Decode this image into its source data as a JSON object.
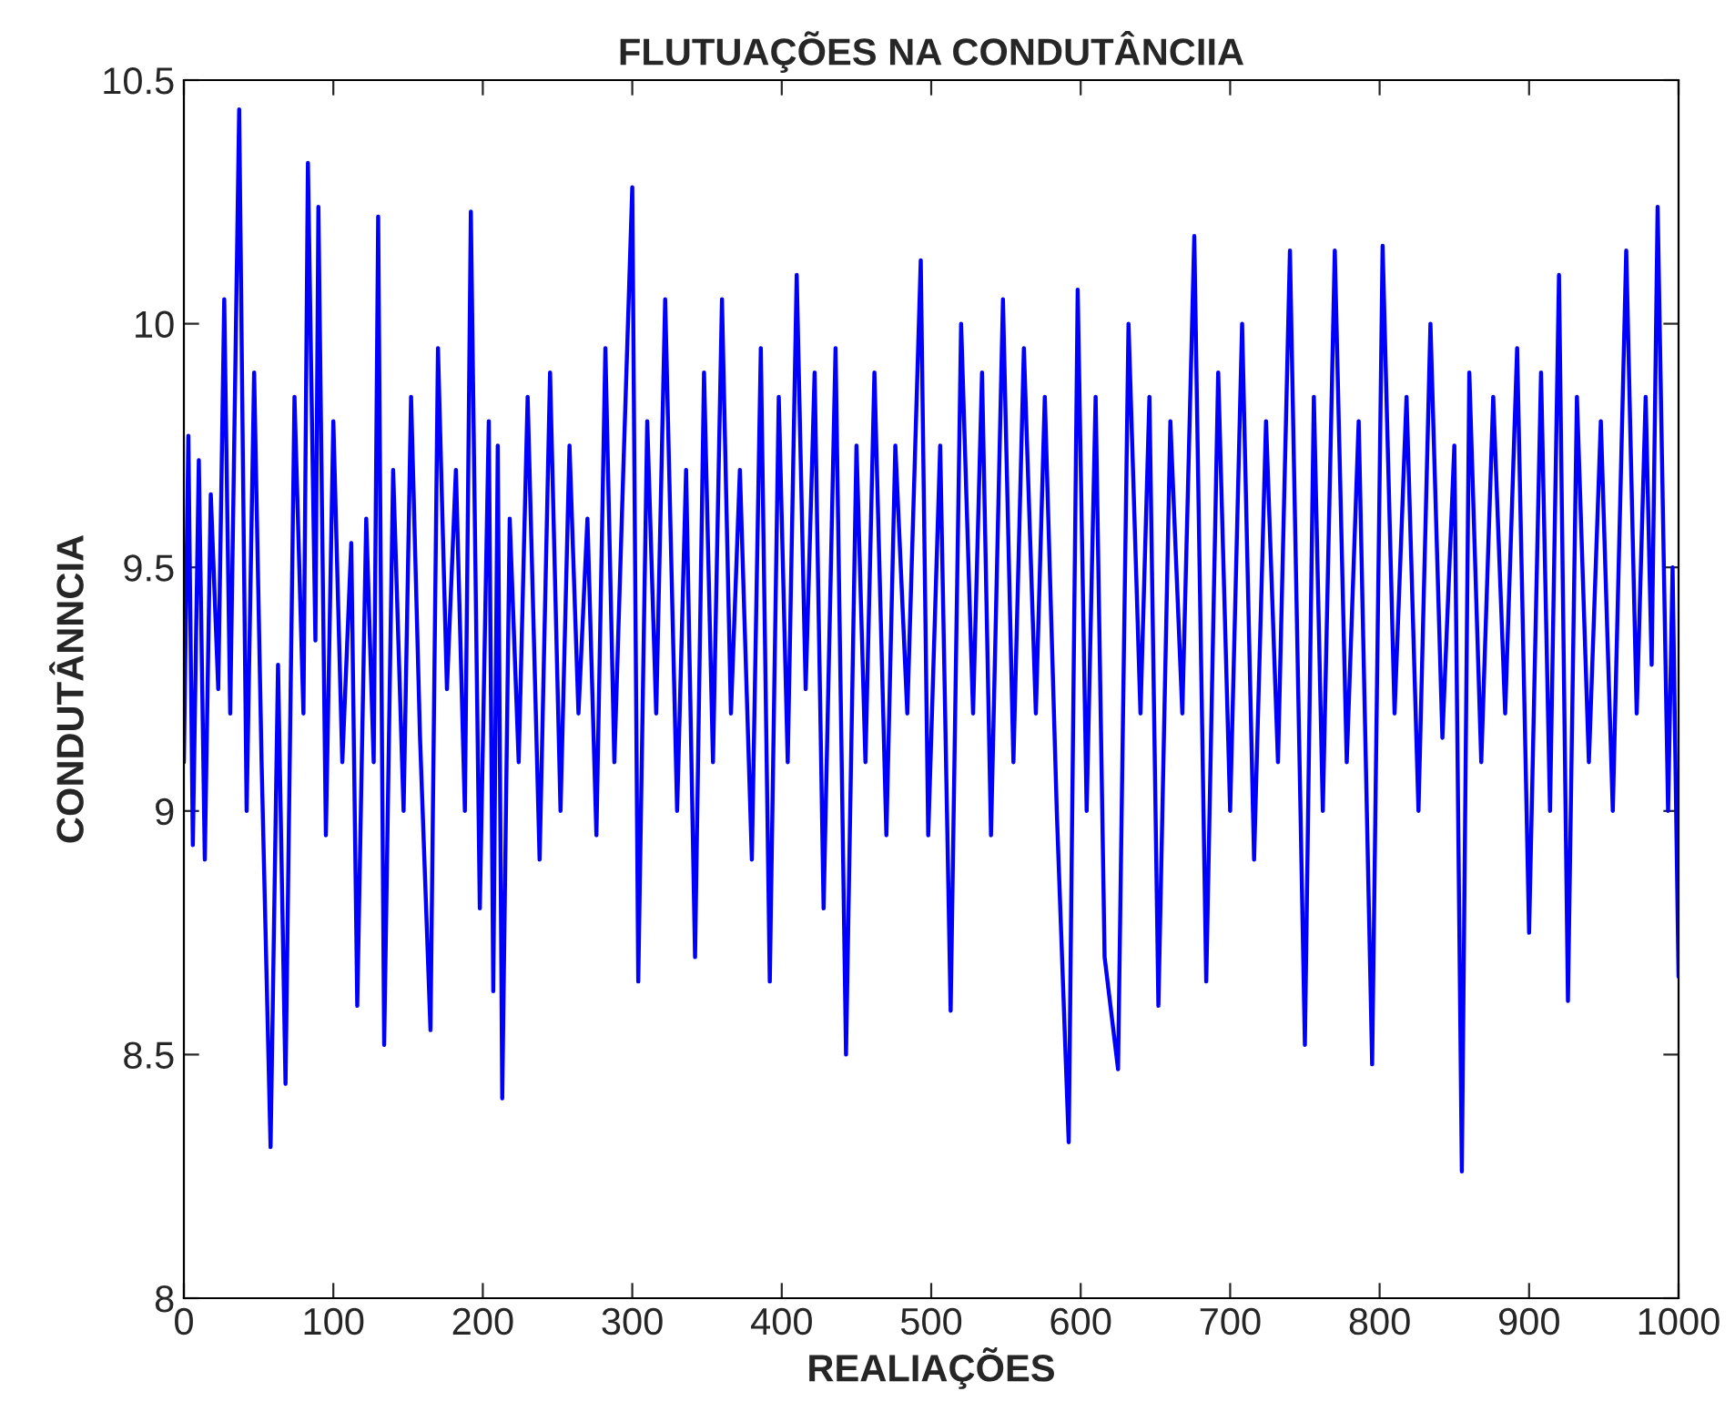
{
  "chart_data": {
    "type": "line",
    "title": "FLUTUAÇÕES NA CONDUTÂNCIIA",
    "xlabel": "REALIAÇÕES",
    "ylabel": "CONDUTÂNNCIA",
    "xlim": [
      0,
      1000
    ],
    "ylim": [
      8,
      10.5
    ],
    "xticks": [
      0,
      100,
      200,
      300,
      400,
      500,
      600,
      700,
      800,
      900,
      1000
    ],
    "yticks": [
      8,
      8.5,
      9,
      9.5,
      10,
      10.5
    ],
    "grid": false,
    "legend": false,
    "series": [
      {
        "color": "#0000ff",
        "x": [
          0,
          3,
          6,
          10,
          14,
          18,
          23,
          27,
          31,
          37,
          42,
          47,
          52,
          58,
          63,
          68,
          74,
          80,
          83,
          88,
          90,
          95,
          100,
          106,
          112,
          116,
          122,
          127,
          130,
          134,
          140,
          147,
          152,
          158,
          165,
          170,
          176,
          182,
          188,
          192,
          198,
          204,
          207,
          210,
          213,
          218,
          224,
          230,
          238,
          245,
          252,
          258,
          264,
          270,
          276,
          282,
          288,
          294,
          300,
          304,
          310,
          316,
          322,
          330,
          336,
          342,
          348,
          354,
          360,
          366,
          372,
          380,
          386,
          392,
          398,
          404,
          410,
          416,
          422,
          428,
          436,
          443,
          450,
          456,
          462,
          470,
          476,
          484,
          493,
          498,
          506,
          513,
          520,
          528,
          534,
          540,
          548,
          555,
          562,
          570,
          576,
          584,
          592,
          598,
          604,
          610,
          616,
          625,
          632,
          640,
          646,
          652,
          660,
          668,
          676,
          684,
          692,
          700,
          708,
          716,
          724,
          732,
          740,
          750,
          756,
          762,
          770,
          778,
          786,
          795,
          802,
          810,
          818,
          826,
          834,
          842,
          850,
          855,
          860,
          868,
          876,
          884,
          892,
          900,
          908,
          914,
          920,
          926,
          932,
          940,
          948,
          956,
          965,
          972,
          978,
          982,
          986,
          993,
          996,
          1000
        ],
        "values": [
          9.1,
          9.77,
          8.93,
          9.72,
          8.9,
          9.65,
          9.25,
          10.05,
          9.2,
          10.44,
          9.0,
          9.9,
          9.1,
          8.31,
          9.3,
          8.44,
          9.85,
          9.2,
          10.33,
          9.35,
          10.24,
          8.95,
          9.8,
          9.1,
          9.55,
          8.6,
          9.6,
          9.1,
          10.22,
          8.52,
          9.7,
          9.0,
          9.85,
          9.15,
          8.55,
          9.95,
          9.25,
          9.7,
          9.0,
          10.23,
          8.8,
          9.8,
          8.63,
          9.75,
          8.41,
          9.6,
          9.1,
          9.85,
          8.9,
          9.9,
          9.0,
          9.75,
          9.2,
          9.6,
          8.95,
          9.95,
          9.1,
          9.7,
          10.28,
          8.65,
          9.8,
          9.2,
          10.05,
          9.0,
          9.7,
          8.7,
          9.9,
          9.1,
          10.05,
          9.2,
          9.7,
          8.9,
          9.95,
          8.65,
          9.85,
          9.1,
          10.1,
          9.25,
          9.9,
          8.8,
          9.95,
          8.5,
          9.75,
          9.1,
          9.9,
          8.95,
          9.75,
          9.2,
          10.13,
          8.95,
          9.75,
          8.59,
          10.0,
          9.2,
          9.9,
          8.95,
          10.05,
          9.1,
          9.95,
          9.2,
          9.85,
          9.0,
          8.32,
          10.07,
          9.0,
          9.85,
          8.7,
          8.47,
          10.0,
          9.2,
          9.85,
          8.6,
          9.8,
          9.2,
          10.18,
          8.65,
          9.9,
          9.0,
          10.0,
          8.9,
          9.8,
          9.1,
          10.15,
          8.52,
          9.85,
          9.0,
          10.15,
          9.1,
          9.8,
          8.48,
          10.16,
          9.2,
          9.85,
          9.0,
          10.0,
          9.15,
          9.75,
          8.26,
          9.9,
          9.1,
          9.85,
          9.2,
          9.95,
          8.75,
          9.9,
          9.0,
          10.1,
          8.61,
          9.85,
          9.1,
          9.8,
          9.0,
          10.15,
          9.2,
          9.85,
          9.3,
          10.24,
          9.0,
          9.5,
          8.66
        ]
      }
    ]
  }
}
